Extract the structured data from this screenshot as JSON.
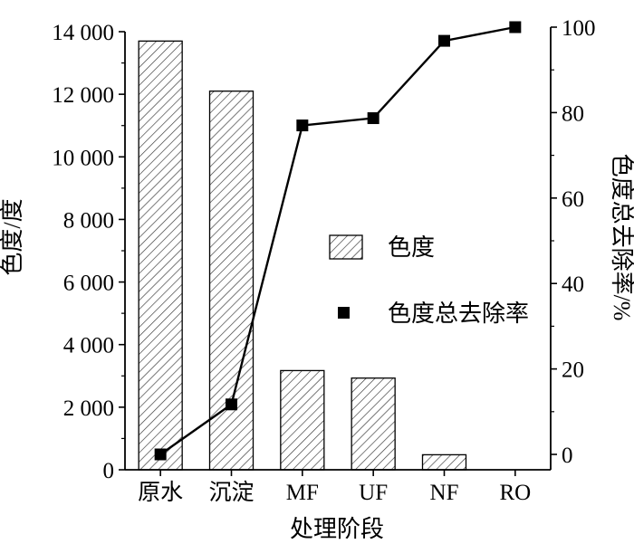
{
  "chart_data": {
    "type": "bar",
    "categories": [
      "原水",
      "沉淀",
      "MF",
      "UF",
      "NF",
      "RO"
    ],
    "series": [
      {
        "name": "色度",
        "type": "bar",
        "axis": "left",
        "values": [
          13700,
          12100,
          3170,
          2930,
          480,
          0
        ]
      },
      {
        "name": "色度总去除率",
        "type": "line",
        "axis": "right",
        "values": [
          0,
          11.7,
          77.0,
          78.7,
          96.8,
          100
        ]
      }
    ],
    "xlabel": "处理阶段",
    "ylabel": "色度/度",
    "y2label": "色度总去除率/%",
    "ylim": [
      0,
      14000
    ],
    "y2lim": [
      -3.6,
      100
    ],
    "yticks": [
      "0",
      "2 000",
      "4 000",
      "6 000",
      "8 000",
      "10 000",
      "12 000",
      "14 000"
    ],
    "y2ticks": [
      "0",
      "20",
      "40",
      "60",
      "80",
      "100"
    ],
    "legend_position": "center-right",
    "grid": false,
    "colors": {
      "bar_stroke": "#000000",
      "hatch": "#333333",
      "line": "#000000",
      "marker": "#000000"
    }
  }
}
